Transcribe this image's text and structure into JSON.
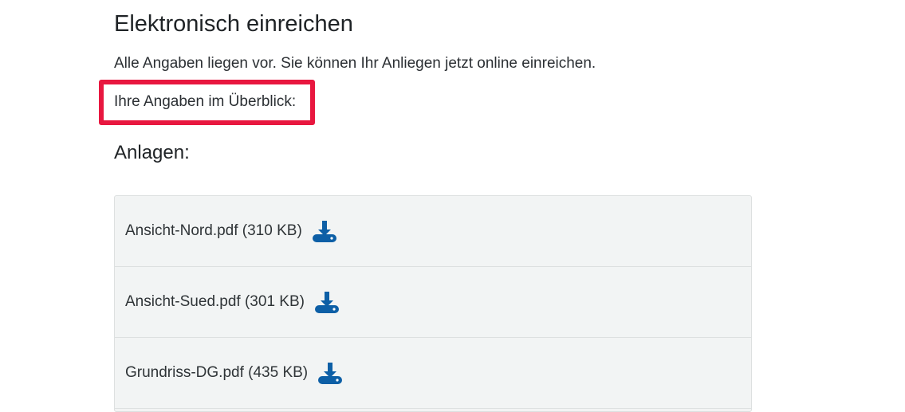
{
  "heading": "Elektronisch einreichen",
  "intro": "Alle Angaben liegen vor. Sie können Ihr Anliegen jetzt online einreichen.",
  "overview_label": "Ihre Angaben im Überblick:",
  "attachments_heading": "Anlagen:",
  "highlight_color": "#e8173f",
  "icon_color": "#0d5fa6",
  "attachments": [
    {
      "label": "Ansicht-Nord.pdf (310 KB)",
      "icon": "download-icon"
    },
    {
      "label": "Ansicht-Sued.pdf (301 KB)",
      "icon": "download-icon"
    },
    {
      "label": "Grundriss-DG.pdf (435 KB)",
      "icon": "download-icon"
    }
  ]
}
